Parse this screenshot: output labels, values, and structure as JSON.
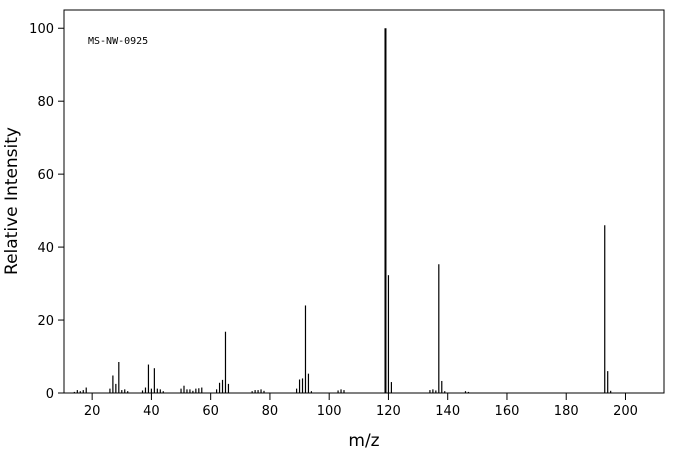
{
  "chart_data": {
    "type": "stem",
    "annotation": "MS-NW-0925",
    "xlabel": "m/z",
    "ylabel": "Relative Intensity",
    "color": "#000000",
    "xlim": [
      10.5,
      213
    ],
    "ylim": [
      0,
      105
    ],
    "xticks": [
      20,
      40,
      60,
      80,
      100,
      120,
      140,
      160,
      180,
      200
    ],
    "yticks": [
      0,
      20,
      40,
      60,
      80,
      100
    ],
    "x": [
      14,
      15,
      16,
      17,
      18,
      26,
      27,
      28,
      29,
      30,
      31,
      32,
      37,
      38,
      39,
      40,
      41,
      42,
      43,
      44,
      50,
      51,
      52,
      53,
      54,
      55,
      56,
      57,
      62,
      63,
      64,
      65,
      66,
      74,
      75,
      76,
      77,
      78,
      89,
      90,
      91,
      92,
      93,
      94,
      103,
      104,
      105,
      119,
      120,
      121,
      134,
      135,
      136,
      137,
      138,
      139,
      146,
      147,
      193,
      194,
      195
    ],
    "values": [
      0.3,
      0.8,
      0.5,
      0.8,
      1.5,
      1.2,
      4.8,
      2.5,
      8.5,
      0.8,
      1.0,
      0.5,
      0.7,
      1.5,
      7.8,
      1.2,
      6.8,
      1.2,
      1.0,
      0.5,
      1.2,
      2.0,
      1.0,
      1.0,
      0.6,
      1.2,
      1.3,
      1.5,
      1.0,
      2.8,
      3.6,
      16.8,
      2.5,
      0.5,
      0.8,
      0.8,
      1.0,
      0.6,
      1.2,
      3.7,
      4.0,
      24.0,
      5.3,
      0.5,
      0.7,
      1.0,
      0.8,
      100,
      32.3,
      3.0,
      0.8,
      1.0,
      0.7,
      35.3,
      3.3,
      0.5,
      0.5,
      0.3,
      46.0,
      6.0,
      0.6
    ]
  }
}
